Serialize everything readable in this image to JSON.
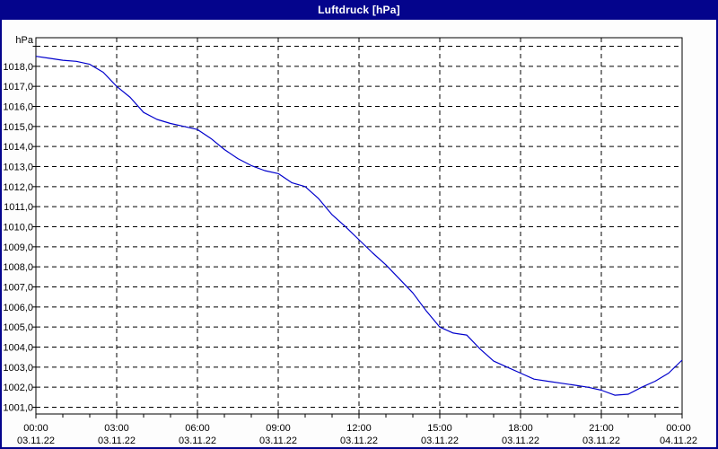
{
  "window": {
    "title": "Luftdruck [hPa]",
    "titlebar_color": "#04048C",
    "background_color": "#FDFDFD"
  },
  "chart_data": {
    "type": "line",
    "title": "Luftdruck [hPa]",
    "unit_label": "hPa",
    "grid": "dashed",
    "legend": "none",
    "xlim": [
      0,
      24
    ],
    "ylim": [
      1001,
      1019
    ],
    "y_label_min": 1001,
    "y_label_max": 1018,
    "y_tick_step": 1,
    "x_gridline_hours": [
      3,
      6,
      9,
      12,
      15,
      18,
      21
    ],
    "x_minor_tick_hours": 1,
    "x_ticks": [
      {
        "hour": 0,
        "time": "00:00",
        "date": "03.11.22"
      },
      {
        "hour": 3,
        "time": "03:00",
        "date": "03.11.22"
      },
      {
        "hour": 6,
        "time": "06:00",
        "date": "03.11.22"
      },
      {
        "hour": 9,
        "time": "09:00",
        "date": "03.11.22"
      },
      {
        "hour": 12,
        "time": "12:00",
        "date": "03.11.22"
      },
      {
        "hour": 15,
        "time": "15:00",
        "date": "03.11.22"
      },
      {
        "hour": 18,
        "time": "18:00",
        "date": "03.11.22"
      },
      {
        "hour": 21,
        "time": "21:00",
        "date": "03.11.22"
      },
      {
        "hour": 24,
        "time": "00:00",
        "date": "04.11.22"
      }
    ],
    "colors": {
      "line": "#0000CC",
      "grid": "#000000",
      "text": "#000000",
      "plot_background": "#FFFFFF"
    },
    "series": [
      {
        "name": "Luftdruck",
        "x_hours": [
          0,
          0.5,
          1,
          1.5,
          2,
          2.5,
          3,
          3.5,
          4,
          4.5,
          5,
          5.5,
          6,
          6.5,
          7,
          7.5,
          8,
          8.5,
          9,
          9.5,
          10,
          10.5,
          11,
          11.5,
          12,
          12.5,
          13,
          13.5,
          14,
          14.5,
          15,
          15.5,
          16,
          16.5,
          17,
          17.5,
          18,
          18.5,
          19,
          19.5,
          20,
          20.5,
          21,
          21.5,
          22,
          22.5,
          23,
          23.5,
          24
        ],
        "values": [
          1018.5,
          1018.4,
          1018.3,
          1018.25,
          1018.1,
          1017.7,
          1017.0,
          1016.45,
          1015.7,
          1015.35,
          1015.15,
          1015.0,
          1014.85,
          1014.4,
          1013.85,
          1013.4,
          1013.05,
          1012.8,
          1012.65,
          1012.2,
          1012.0,
          1011.4,
          1010.6,
          1010.0,
          1009.35,
          1008.7,
          1008.1,
          1007.4,
          1006.7,
          1005.8,
          1005.0,
          1004.7,
          1004.6,
          1003.9,
          1003.3,
          1003.0,
          1002.7,
          1002.4,
          1002.3,
          1002.2,
          1002.1,
          1002.0,
          1001.85,
          1001.6,
          1001.65,
          1002.0,
          1002.3,
          1002.7,
          1003.35
        ]
      }
    ]
  }
}
